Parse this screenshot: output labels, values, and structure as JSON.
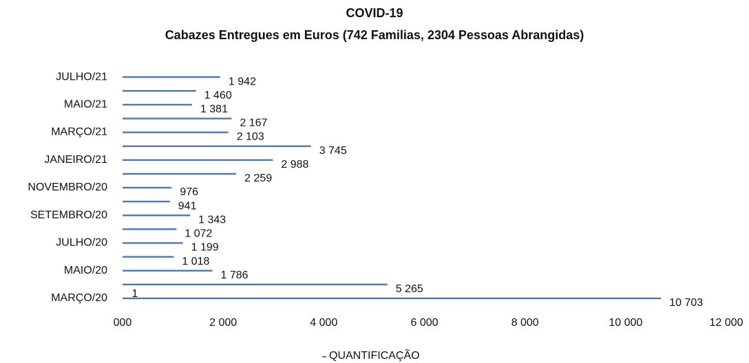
{
  "chart_data": {
    "type": "bar",
    "orientation": "horizontal",
    "title": "COVID-19",
    "subtitle": "Cabazes Entregues em Euros (742 Familias, 2304 Pessoas Abrangidas)",
    "categories": [
      "MARÇO/20",
      null,
      "MAIO/20",
      null,
      "JULHO/20",
      null,
      "SETEMBRO/20",
      null,
      "NOVEMBRO/20",
      null,
      "JANEIRO/21",
      null,
      "MARÇO/21",
      null,
      "MAIO/21",
      null,
      "JULHO/21"
    ],
    "series": [
      {
        "name": "QUANTIFICAÇÃO",
        "color": "#4a78b8",
        "values": [
          10703,
          5265,
          1786,
          1018,
          1199,
          1072,
          1343,
          941,
          976,
          2259,
          2988,
          3745,
          2103,
          2167,
          1381,
          1460,
          1942
        ],
        "value_labels": [
          "10 703",
          "5 265",
          "1 786",
          "1 018",
          "1 199",
          "1 072",
          "1 343",
          "941",
          "976",
          "2 259",
          "2 988",
          "3 745",
          "2 103",
          "2 167",
          "1 381",
          "1 460",
          "1 942"
        ]
      }
    ],
    "annotations": [
      "1"
    ],
    "xlim": [
      0,
      12000
    ],
    "xticks": [
      {
        "value": 0,
        "label": "000"
      },
      {
        "value": 2000,
        "label": "2 000"
      },
      {
        "value": 4000,
        "label": "4 000"
      },
      {
        "value": 6000,
        "label": "6 000"
      },
      {
        "value": 8000,
        "label": "8 000"
      },
      {
        "value": 10000,
        "label": "10 000"
      },
      {
        "value": 12000,
        "label": "12 000"
      }
    ],
    "grid": false,
    "legend": "bottom"
  }
}
